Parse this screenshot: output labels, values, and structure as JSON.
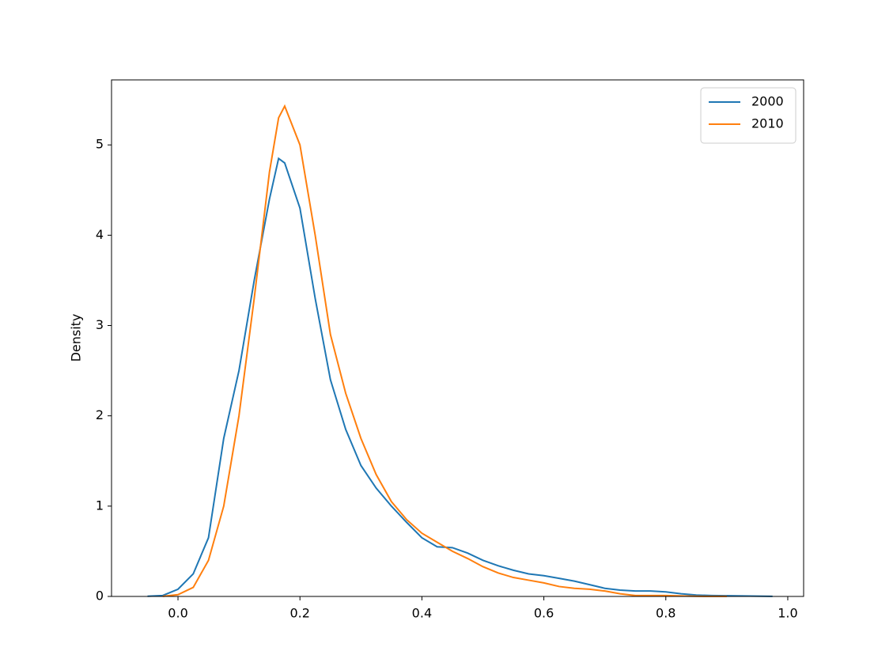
{
  "chart_data": {
    "type": "line",
    "ylabel": "Density",
    "x": [
      -0.05,
      -0.025,
      0,
      0.025,
      0.05,
      0.075,
      0.1,
      0.125,
      0.15,
      0.165,
      0.175,
      0.2,
      0.225,
      0.25,
      0.275,
      0.3,
      0.325,
      0.35,
      0.375,
      0.4,
      0.425,
      0.45,
      0.475,
      0.5,
      0.525,
      0.55,
      0.575,
      0.6,
      0.625,
      0.65,
      0.675,
      0.7,
      0.725,
      0.75,
      0.775,
      0.8,
      0.825,
      0.85,
      0.875,
      0.9,
      0.925,
      0.95,
      0.975
    ],
    "series": [
      {
        "name": "2000",
        "color": "#1f77b4",
        "values": [
          0.002,
          0.01,
          0.08,
          0.25,
          0.65,
          1.75,
          2.5,
          3.5,
          4.4,
          4.85,
          4.8,
          4.3,
          3.3,
          2.4,
          1.85,
          1.45,
          1.2,
          1.0,
          0.82,
          0.65,
          0.55,
          0.54,
          0.48,
          0.4,
          0.34,
          0.29,
          0.25,
          0.23,
          0.2,
          0.17,
          0.13,
          0.09,
          0.07,
          0.06,
          0.06,
          0.05,
          0.03,
          0.015,
          0.01,
          0.008,
          0.005,
          0.003,
          0.001
        ]
      },
      {
        "name": "2010",
        "color": "#ff7f0e",
        "values": [
          null,
          0.001,
          0.02,
          0.1,
          0.4,
          1.0,
          2.0,
          3.3,
          4.7,
          5.3,
          5.43,
          5.0,
          4.0,
          2.9,
          2.25,
          1.75,
          1.35,
          1.05,
          0.85,
          0.7,
          0.6,
          0.5,
          0.42,
          0.33,
          0.26,
          0.21,
          0.18,
          0.15,
          0.11,
          0.09,
          0.08,
          0.06,
          0.03,
          0.01,
          0.01,
          0.01,
          0.005,
          0.002,
          0.001,
          0.001,
          null,
          null,
          null
        ]
      }
    ],
    "xlim": [
      -0.109,
      1.026
    ],
    "ylim": [
      0,
      5.72
    ],
    "xticks": [
      {
        "value": 0,
        "label": "0.0"
      },
      0.2,
      0.4,
      0.6,
      0.8,
      {
        "value": 1,
        "label": "1.0"
      }
    ],
    "yticks": [
      0,
      1,
      2,
      3,
      4,
      5
    ],
    "legend": "upper right"
  }
}
